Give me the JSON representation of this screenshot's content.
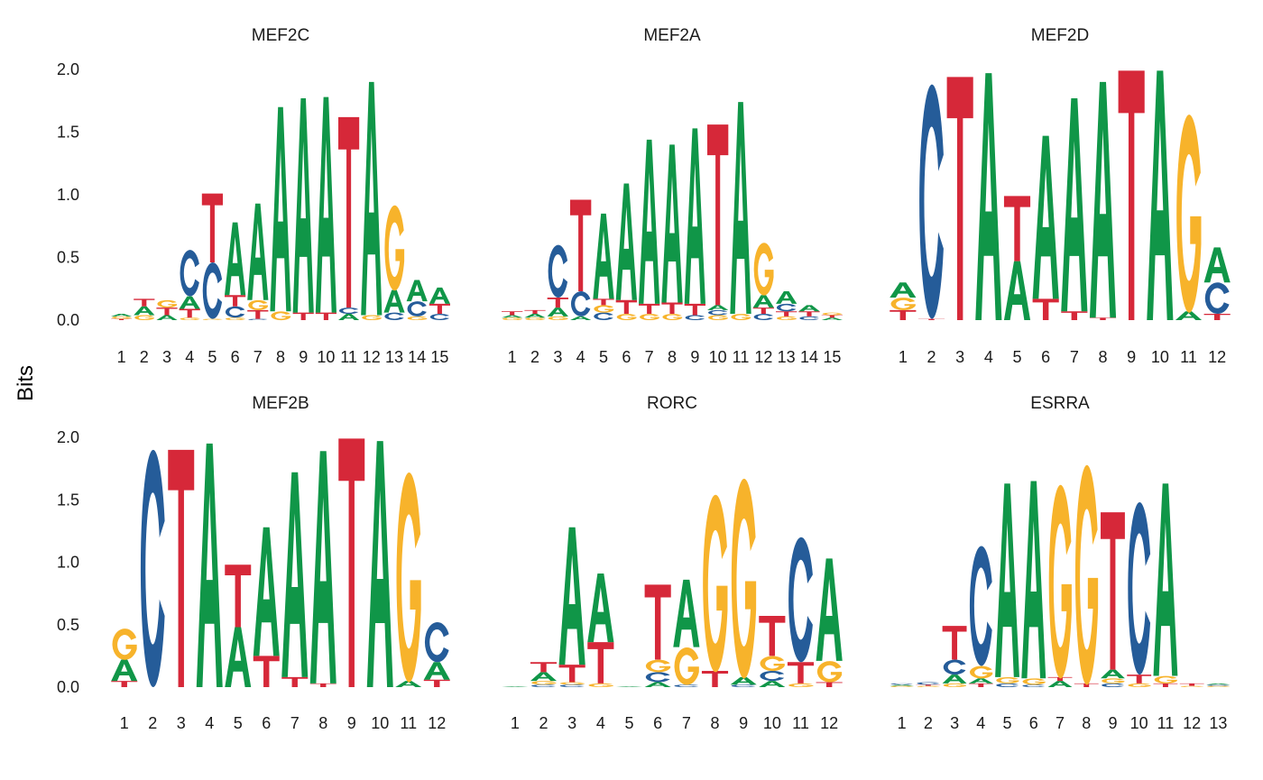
{
  "colors": {
    "A": "#109648",
    "C": "#255C99",
    "G": "#F7B32B",
    "T": "#D62839"
  },
  "chart_data": [
    {
      "type": "sequence-logo",
      "title": "MEF2C",
      "ylabel": "Bits",
      "ylim": [
        0,
        2
      ],
      "yticks": [
        "0.0",
        "0.5",
        "1.0",
        "1.5",
        "2.0"
      ],
      "xticks": [
        "1",
        "2",
        "3",
        "4",
        "5",
        "6",
        "7",
        "8",
        "9",
        "10",
        "11",
        "12",
        "13",
        "14",
        "15"
      ],
      "positions": [
        [
          [
            "T",
            0.01
          ],
          [
            "G",
            0.02
          ],
          [
            "A",
            0.02
          ]
        ],
        [
          [
            "G",
            0.04
          ],
          [
            "A",
            0.07
          ],
          [
            "T",
            0.06
          ]
        ],
        [
          [
            "A",
            0.04
          ],
          [
            "T",
            0.06
          ],
          [
            "G",
            0.06
          ]
        ],
        [
          [
            "G",
            0.02
          ],
          [
            "T",
            0.07
          ],
          [
            "A",
            0.1
          ],
          [
            "C",
            0.37
          ]
        ],
        [
          [
            "G",
            0.01
          ],
          [
            "C",
            0.45
          ],
          [
            "T",
            0.55
          ]
        ],
        [
          [
            "G",
            0.02
          ],
          [
            "C",
            0.09
          ],
          [
            "T",
            0.09
          ],
          [
            "A",
            0.58
          ]
        ],
        [
          [
            "C",
            0.01
          ],
          [
            "T",
            0.07
          ],
          [
            "G",
            0.08
          ],
          [
            "A",
            0.77
          ]
        ],
        [
          [
            "G",
            0.07
          ],
          [
            "A",
            1.63
          ]
        ],
        [
          [
            "T",
            0.06
          ],
          [
            "A",
            1.71
          ]
        ],
        [
          [
            "T",
            0.06
          ],
          [
            "A",
            1.72
          ]
        ],
        [
          [
            "A",
            0.05
          ],
          [
            "C",
            0.05
          ],
          [
            "T",
            1.52
          ]
        ],
        [
          [
            "G",
            0.04
          ],
          [
            "A",
            1.86
          ]
        ],
        [
          [
            "C",
            0.06
          ],
          [
            "A",
            0.18
          ],
          [
            "G",
            0.68
          ]
        ],
        [
          [
            "G",
            0.03
          ],
          [
            "C",
            0.12
          ],
          [
            "A",
            0.17
          ]
        ],
        [
          [
            "C",
            0.05
          ],
          [
            "T",
            0.08
          ],
          [
            "A",
            0.13
          ]
        ]
      ]
    },
    {
      "type": "sequence-logo",
      "title": "MEF2A",
      "ylim": [
        0,
        2
      ],
      "xticks": [
        "1",
        "2",
        "3",
        "4",
        "5",
        "6",
        "7",
        "8",
        "9",
        "10",
        "11",
        "12",
        "13",
        "14",
        "15"
      ],
      "positions": [
        [
          [
            "G",
            0.02
          ],
          [
            "A",
            0.02
          ],
          [
            "T",
            0.03
          ]
        ],
        [
          [
            "G",
            0.02
          ],
          [
            "A",
            0.03
          ],
          [
            "T",
            0.03
          ]
        ],
        [
          [
            "G",
            0.03
          ],
          [
            "A",
            0.07
          ],
          [
            "T",
            0.08
          ],
          [
            "C",
            0.42
          ]
        ],
        [
          [
            "A",
            0.03
          ],
          [
            "C",
            0.2
          ],
          [
            "T",
            0.73
          ]
        ],
        [
          [
            "C",
            0.06
          ],
          [
            "G",
            0.06
          ],
          [
            "T",
            0.05
          ],
          [
            "A",
            0.68
          ]
        ],
        [
          [
            "G",
            0.05
          ],
          [
            "T",
            0.11
          ],
          [
            "A",
            0.93
          ]
        ],
        [
          [
            "G",
            0.05
          ],
          [
            "T",
            0.08
          ],
          [
            "A",
            1.31
          ]
        ],
        [
          [
            "G",
            0.05
          ],
          [
            "T",
            0.09
          ],
          [
            "A",
            1.26
          ]
        ],
        [
          [
            "C",
            0.04
          ],
          [
            "T",
            0.09
          ],
          [
            "A",
            1.4
          ]
        ],
        [
          [
            "G",
            0.04
          ],
          [
            "C",
            0.04
          ],
          [
            "A",
            0.04
          ],
          [
            "T",
            1.44
          ]
        ],
        [
          [
            "G",
            0.05
          ],
          [
            "A",
            1.69
          ]
        ],
        [
          [
            "C",
            0.05
          ],
          [
            "T",
            0.05
          ],
          [
            "A",
            0.1
          ],
          [
            "G",
            0.42
          ]
        ],
        [
          [
            "G",
            0.03
          ],
          [
            "T",
            0.04
          ],
          [
            "C",
            0.06
          ],
          [
            "A",
            0.1
          ]
        ],
        [
          [
            "C",
            0.03
          ],
          [
            "T",
            0.04
          ],
          [
            "A",
            0.05
          ]
        ],
        [
          [
            "A",
            0.02
          ],
          [
            "T",
            0.02
          ],
          [
            "G",
            0.02
          ]
        ]
      ]
    },
    {
      "type": "sequence-logo",
      "title": "MEF2D",
      "ylim": [
        0,
        2
      ],
      "xticks": [
        "1",
        "2",
        "3",
        "4",
        "5",
        "6",
        "7",
        "8",
        "9",
        "10",
        "11",
        "12"
      ],
      "positions": [
        [
          [
            "T",
            0.08
          ],
          [
            "G",
            0.1
          ],
          [
            "A",
            0.12
          ]
        ],
        [
          [
            "T",
            0.01
          ],
          [
            "C",
            1.87
          ]
        ],
        [
          [
            "T",
            1.94
          ]
        ],
        [
          [
            "A",
            1.97
          ]
        ],
        [
          [
            "A",
            0.47
          ],
          [
            "T",
            0.52
          ]
        ],
        [
          [
            "T",
            0.17
          ],
          [
            "A",
            1.3
          ]
        ],
        [
          [
            "T",
            0.07
          ],
          [
            "A",
            1.7
          ]
        ],
        [
          [
            "T",
            0.02
          ],
          [
            "A",
            1.88
          ]
        ],
        [
          [
            "T",
            1.99
          ]
        ],
        [
          [
            "A",
            1.99
          ]
        ],
        [
          [
            "A",
            0.07
          ],
          [
            "G",
            1.58
          ]
        ],
        [
          [
            "T",
            0.05
          ],
          [
            "C",
            0.25
          ],
          [
            "A",
            0.28
          ]
        ]
      ]
    },
    {
      "type": "sequence-logo",
      "title": "MEF2B",
      "ylabel": "Bits",
      "ylim": [
        0,
        2
      ],
      "yticks": [
        "0.0",
        "0.5",
        "1.0",
        "1.5",
        "2.0"
      ],
      "xticks": [
        "1",
        "2",
        "3",
        "4",
        "5",
        "6",
        "7",
        "8",
        "9",
        "10",
        "11",
        "12"
      ],
      "positions": [
        [
          [
            "T",
            0.05
          ],
          [
            "A",
            0.17
          ],
          [
            "G",
            0.25
          ]
        ],
        [
          [
            "C",
            1.9
          ]
        ],
        [
          [
            "T",
            1.9
          ]
        ],
        [
          [
            "A",
            1.95
          ]
        ],
        [
          [
            "A",
            0.48
          ],
          [
            "T",
            0.5
          ]
        ],
        [
          [
            "T",
            0.25
          ],
          [
            "A",
            1.03
          ]
        ],
        [
          [
            "T",
            0.08
          ],
          [
            "A",
            1.64
          ]
        ],
        [
          [
            "T",
            0.03
          ],
          [
            "A",
            1.86
          ]
        ],
        [
          [
            "T",
            1.99
          ]
        ],
        [
          [
            "A",
            1.97
          ]
        ],
        [
          [
            "A",
            0.05
          ],
          [
            "G",
            1.68
          ]
        ],
        [
          [
            "T",
            0.06
          ],
          [
            "A",
            0.14
          ],
          [
            "C",
            0.32
          ]
        ]
      ]
    },
    {
      "type": "sequence-logo",
      "title": "RORC",
      "ylim": [
        0,
        2
      ],
      "xticks": [
        "1",
        "2",
        "3",
        "4",
        "5",
        "6",
        "7",
        "8",
        "9",
        "10",
        "11",
        "12"
      ],
      "positions": [
        [
          [
            "A",
            0.005
          ]
        ],
        [
          [
            "C",
            0.02
          ],
          [
            "G",
            0.03
          ],
          [
            "A",
            0.07
          ],
          [
            "T",
            0.08
          ]
        ],
        [
          [
            "C",
            0.02
          ],
          [
            "G",
            0.02
          ],
          [
            "T",
            0.14
          ],
          [
            "A",
            1.1
          ]
        ],
        [
          [
            "G",
            0.03
          ],
          [
            "T",
            0.33
          ],
          [
            "A",
            0.55
          ]
        ],
        [
          [
            "A",
            0.005
          ]
        ],
        [
          [
            "A",
            0.04
          ],
          [
            "C",
            0.08
          ],
          [
            "G",
            0.1
          ],
          [
            "T",
            0.6
          ]
        ],
        [
          [
            "C",
            0.02
          ],
          [
            "G",
            0.3
          ],
          [
            "A",
            0.54
          ]
        ],
        [
          [
            "T",
            0.13
          ],
          [
            "G",
            1.42
          ]
        ],
        [
          [
            "C",
            0.02
          ],
          [
            "A",
            0.06
          ],
          [
            "G",
            1.6
          ]
        ],
        [
          [
            "A",
            0.05
          ],
          [
            "C",
            0.08
          ],
          [
            "G",
            0.12
          ],
          [
            "T",
            0.32
          ]
        ],
        [
          [
            "G",
            0.03
          ],
          [
            "T",
            0.17
          ],
          [
            "C",
            1.0
          ]
        ],
        [
          [
            "T",
            0.04
          ],
          [
            "G",
            0.17
          ],
          [
            "A",
            0.82
          ]
        ]
      ]
    },
    {
      "type": "sequence-logo",
      "title": "ESRRA",
      "ylim": [
        0,
        2
      ],
      "xticks": [
        "1",
        "2",
        "3",
        "4",
        "5",
        "6",
        "7",
        "8",
        "9",
        "10",
        "11",
        "12",
        "13"
      ],
      "positions": [
        [
          [
            "G",
            0.01
          ],
          [
            "A",
            0.01
          ],
          [
            "C",
            0.01
          ]
        ],
        [
          [
            "G",
            0.01
          ],
          [
            "T",
            0.01
          ],
          [
            "C",
            0.02
          ]
        ],
        [
          [
            "G",
            0.03
          ],
          [
            "A",
            0.07
          ],
          [
            "C",
            0.12
          ],
          [
            "T",
            0.27
          ]
        ],
        [
          [
            "T",
            0.03
          ],
          [
            "A",
            0.04
          ],
          [
            "G",
            0.1
          ],
          [
            "C",
            0.96
          ]
        ],
        [
          [
            "C",
            0.03
          ],
          [
            "G",
            0.05
          ],
          [
            "A",
            1.55
          ]
        ],
        [
          [
            "C",
            0.02
          ],
          [
            "G",
            0.05
          ],
          [
            "A",
            1.58
          ]
        ],
        [
          [
            "A",
            0.05
          ],
          [
            "T",
            0.03
          ],
          [
            "G",
            1.55
          ]
        ],
        [
          [
            "T",
            0.03
          ],
          [
            "G",
            1.76
          ]
        ],
        [
          [
            "C",
            0.03
          ],
          [
            "G",
            0.04
          ],
          [
            "A",
            0.07
          ],
          [
            "T",
            1.26
          ]
        ],
        [
          [
            "G",
            0.03
          ],
          [
            "T",
            0.07
          ],
          [
            "C",
            1.38
          ]
        ],
        [
          [
            "T",
            0.03
          ],
          [
            "G",
            0.06
          ],
          [
            "A",
            1.54
          ]
        ],
        [
          [
            "G",
            0.01
          ],
          [
            "T",
            0.02
          ]
        ],
        [
          [
            "G",
            0.01
          ],
          [
            "C",
            0.01
          ],
          [
            "A",
            0.01
          ]
        ]
      ]
    }
  ]
}
